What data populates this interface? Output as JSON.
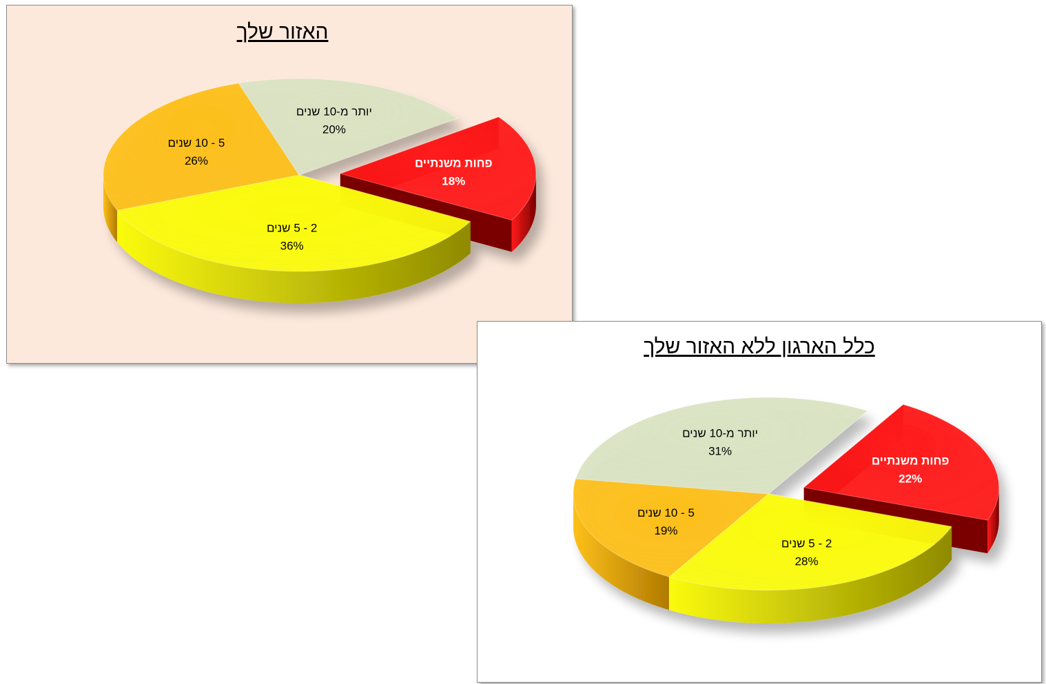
{
  "chart_data": [
    {
      "type": "pie",
      "title": "האזור שלך",
      "background": "#fde9dc",
      "slices": [
        {
          "label": "פחות משנתיים",
          "value": 18,
          "display": "18%",
          "color": "#ff1a1a",
          "dark": "#7a0000",
          "exploded": true,
          "text_color": "#ffffff",
          "bold": true
        },
        {
          "label": "2 - 5 שנים",
          "value": 36,
          "display": "36%",
          "color": "#fbfb10",
          "dark": "#8f8a00",
          "exploded": false,
          "text_color": "#000000",
          "bold": false
        },
        {
          "label": "5 - 10 שנים",
          "value": 26,
          "display": "26%",
          "color": "#fdc01a",
          "dark": "#b07a00",
          "exploded": false,
          "text_color": "#000000",
          "bold": false
        },
        {
          "label": "יותר מ-10 שנים",
          "value": 20,
          "display": "20%",
          "color": "#dae3c3",
          "dark": "#838b72",
          "exploded": false,
          "text_color": "#000000",
          "bold": false
        }
      ]
    },
    {
      "type": "pie",
      "title": "כלל הארגון ללא האזור שלך",
      "background": "#ffffff",
      "slices": [
        {
          "label": "פחות משנתיים",
          "value": 22,
          "display": "22%",
          "color": "#ff1a1a",
          "dark": "#7a0000",
          "exploded": true,
          "text_color": "#ffffff",
          "bold": true
        },
        {
          "label": "2 - 5 שנים",
          "value": 28,
          "display": "28%",
          "color": "#fbfb10",
          "dark": "#8f8a00",
          "exploded": false,
          "text_color": "#000000",
          "bold": false
        },
        {
          "label": "5 - 10 שנים",
          "value": 19,
          "display": "19%",
          "color": "#fdc01a",
          "dark": "#b07a00",
          "exploded": false,
          "text_color": "#000000",
          "bold": false
        },
        {
          "label": "יותר מ-10 שנים",
          "value": 31,
          "display": "31%",
          "color": "#dae3c3",
          "dark": "#838b72",
          "exploded": false,
          "text_color": "#000000",
          "bold": false
        }
      ]
    }
  ]
}
